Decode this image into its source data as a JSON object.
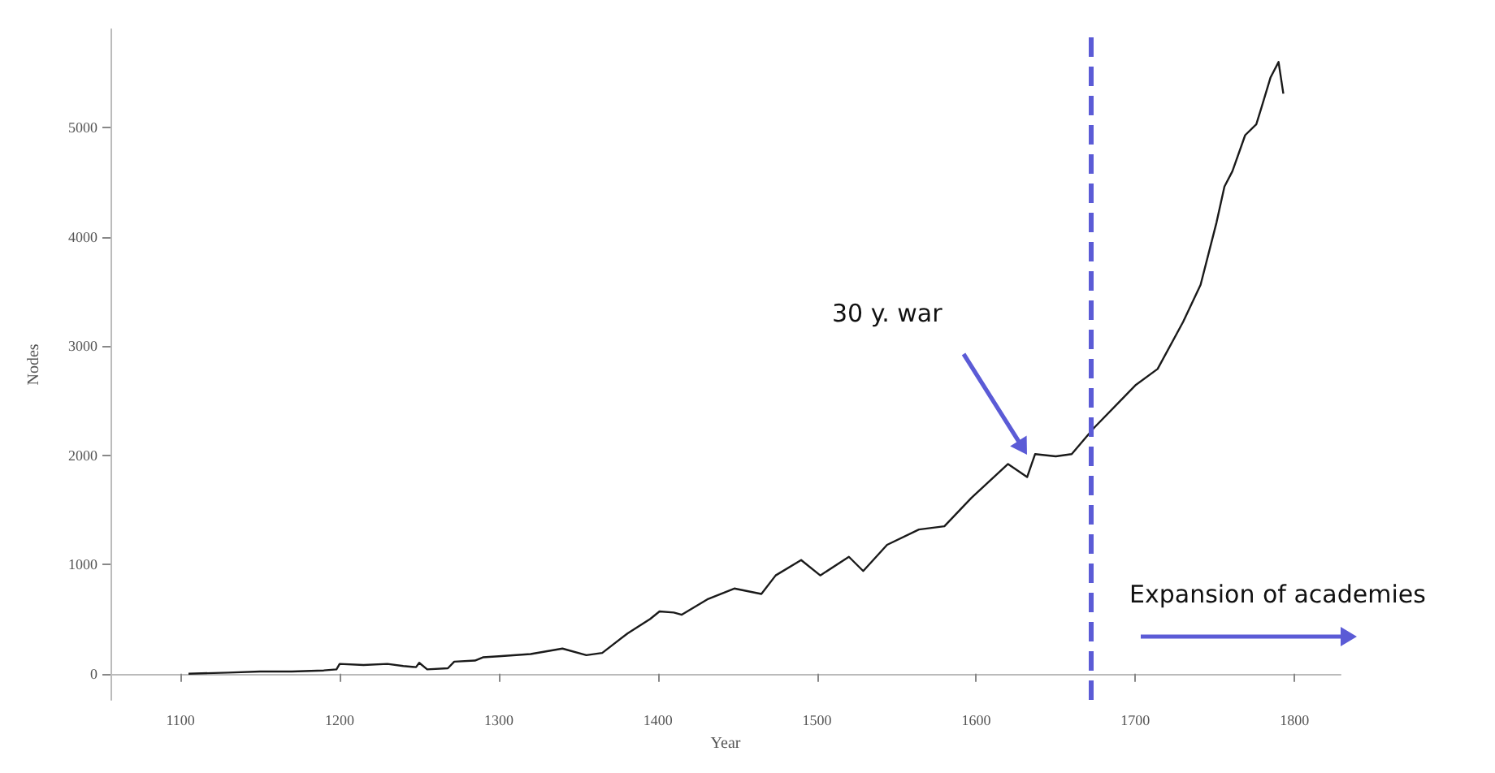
{
  "chart_data": {
    "type": "line",
    "xlabel": "Year",
    "ylabel": "Nodes",
    "x": [
      1105,
      1130,
      1150,
      1170,
      1190,
      1198,
      1200,
      1215,
      1230,
      1240,
      1248,
      1250,
      1255,
      1268,
      1272,
      1285,
      1290,
      1300,
      1320,
      1340,
      1355,
      1365,
      1381,
      1395,
      1401,
      1410,
      1415,
      1431,
      1448,
      1465,
      1474,
      1490,
      1502,
      1520,
      1529,
      1544,
      1564,
      1580,
      1597,
      1620,
      1632,
      1637,
      1650,
      1660,
      1674,
      1700,
      1714,
      1730,
      1741,
      1751,
      1756,
      1761,
      1769,
      1776,
      1779,
      1785,
      1790,
      1793
    ],
    "series": [
      {
        "color": "#1a1a1a",
        "values": [
          0,
          10,
          20,
          20,
          30,
          40,
          90,
          80,
          90,
          70,
          60,
          100,
          40,
          50,
          110,
          120,
          150,
          160,
          180,
          230,
          170,
          190,
          370,
          500,
          570,
          560,
          540,
          680,
          780,
          730,
          900,
          1040,
          900,
          1070,
          940,
          1180,
          1320,
          1350,
          1610,
          1920,
          1800,
          2010,
          1990,
          2010,
          2250,
          2640,
          2790,
          3220,
          3560,
          4130,
          4460,
          4600,
          4930,
          5030,
          5170,
          5460,
          5600,
          5310
        ]
      }
    ],
    "xlim": [
      1056,
      1829
    ],
    "xticks": [
      1100,
      1200,
      1300,
      1400,
      1500,
      1600,
      1700,
      1800
    ],
    "ylim": [
      -240,
      5900
    ],
    "yticks": [
      0,
      1000,
      2000,
      3000,
      4000,
      5000
    ],
    "grid": false,
    "marker": "none",
    "line_style": "solid",
    "ref_lines": [
      {
        "axis": "x",
        "value": 1672,
        "color": "#5b5bd6",
        "line_style": "dashed"
      }
    ],
    "annotations": [
      "30 y. war",
      "Expansion of academies"
    ]
  }
}
